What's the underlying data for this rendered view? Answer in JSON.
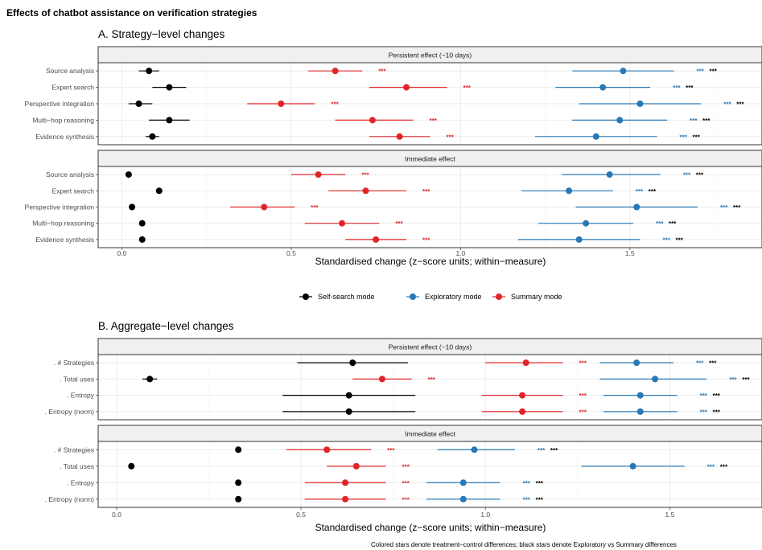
{
  "title": "Effects of chatbot assistance on verification strategies",
  "footnote": "Colored stars denote treatment–control differences; black stars denote Exploratory vs Summary differences",
  "colors": {
    "self": "#000000",
    "exploratory": "#2878b5",
    "summary": "#e02528",
    "strip": "#f0f0f0",
    "grid": "#ebebeb",
    "border": "#333333",
    "tick": "#4d4d4d"
  },
  "legend": {
    "position": "bottom",
    "items": [
      {
        "key": "self",
        "label": "Self-search mode"
      },
      {
        "key": "exploratory",
        "label": "Exploratory mode"
      },
      {
        "key": "summary",
        "label": "Summary mode"
      }
    ]
  },
  "chart_data": [
    {
      "type": "scatter",
      "title": "A. Strategy−level changes",
      "xlabel": "Standardised change (z−score units; within−measure)",
      "xticks": [
        0.0,
        0.5,
        1.0,
        1.5
      ],
      "xtick_labels": [
        "0.0",
        "0.5",
        "1.0",
        "1.5"
      ],
      "xlim": [
        -0.07,
        1.89
      ],
      "grid": true,
      "categories": [
        "Source analysis",
        "Expert search",
        "Perspective integration",
        "Multi−hop reasoning",
        "Evidence synthesis"
      ],
      "facets": [
        {
          "label": "Persistent effect (~10 days)",
          "series": [
            {
              "key": "self",
              "name": "Self-search mode",
              "estimate": [
                0.08,
                0.14,
                0.05,
                0.14,
                0.09
              ],
              "low": [
                0.05,
                0.09,
                0.02,
                0.08,
                0.07
              ],
              "high": [
                0.11,
                0.19,
                0.09,
                0.2,
                0.11
              ],
              "stars": [
                "",
                "",
                "",
                "",
                ""
              ]
            },
            {
              "key": "summary",
              "name": "Summary mode",
              "estimate": [
                0.63,
                0.84,
                0.47,
                0.74,
                0.82
              ],
              "low": [
                0.55,
                0.73,
                0.37,
                0.63,
                0.73
              ],
              "high": [
                0.71,
                0.96,
                0.57,
                0.86,
                0.91
              ],
              "stars": [
                "***",
                "***",
                "***",
                "***",
                "***"
              ]
            },
            {
              "key": "exploratory",
              "name": "Exploratory mode",
              "estimate": [
                1.48,
                1.42,
                1.53,
                1.47,
                1.4
              ],
              "low": [
                1.33,
                1.28,
                1.35,
                1.33,
                1.22
              ],
              "high": [
                1.63,
                1.56,
                1.71,
                1.61,
                1.58
              ],
              "stars": [
                "***",
                "***",
                "***",
                "***",
                "***"
              ],
              "diff_stars": [
                "***",
                "***",
                "***",
                "***",
                "***"
              ]
            }
          ]
        },
        {
          "label": "Immediate effect",
          "series": [
            {
              "key": "self",
              "name": "Self-search mode",
              "estimate": [
                0.02,
                0.11,
                0.03,
                0.06,
                0.06
              ],
              "low": [
                0.02,
                0.11,
                0.03,
                0.06,
                0.06
              ],
              "high": [
                0.02,
                0.11,
                0.03,
                0.06,
                0.06
              ],
              "stars": [
                "",
                "",
                "",
                "",
                ""
              ]
            },
            {
              "key": "summary",
              "name": "Summary mode",
              "estimate": [
                0.58,
                0.72,
                0.42,
                0.65,
                0.75
              ],
              "low": [
                0.5,
                0.61,
                0.32,
                0.54,
                0.66
              ],
              "high": [
                0.66,
                0.84,
                0.51,
                0.76,
                0.84
              ],
              "stars": [
                "***",
                "***",
                "***",
                "***",
                "***"
              ]
            },
            {
              "key": "exploratory",
              "name": "Exploratory mode",
              "estimate": [
                1.44,
                1.32,
                1.52,
                1.37,
                1.35
              ],
              "low": [
                1.3,
                1.18,
                1.34,
                1.23,
                1.17
              ],
              "high": [
                1.59,
                1.45,
                1.7,
                1.51,
                1.53
              ],
              "stars": [
                "***",
                "***",
                "***",
                "***",
                "***"
              ],
              "diff_stars": [
                "***",
                "***",
                "***",
                "***",
                "***"
              ]
            }
          ]
        }
      ]
    },
    {
      "type": "scatter",
      "title": "B. Aggregate−level changes",
      "xlabel": "Standardised change (z−score units; within−measure)",
      "xticks": [
        0.0,
        0.5,
        1.0,
        1.5
      ],
      "xtick_labels": [
        "0.0",
        "0.5",
        "1.0",
        "1.5"
      ],
      "xlim": [
        -0.05,
        1.75
      ],
      "grid": true,
      "categories": [
        ". # Strategies",
        ". Total uses",
        ". Entropy",
        ". Entropy (norm)"
      ],
      "facets": [
        {
          "label": "Persistent effect (~10 days)",
          "series": [
            {
              "key": "self",
              "name": "Self-search mode",
              "estimate": [
                0.64,
                0.09,
                0.63,
                0.63
              ],
              "low": [
                0.49,
                0.07,
                0.45,
                0.45
              ],
              "high": [
                0.79,
                0.11,
                0.81,
                0.81
              ],
              "stars": [
                "",
                "",
                "",
                ""
              ]
            },
            {
              "key": "summary",
              "name": "Summary mode",
              "estimate": [
                1.11,
                0.72,
                1.1,
                1.1
              ],
              "low": [
                1.0,
                0.64,
                0.99,
                0.99
              ],
              "high": [
                1.21,
                0.8,
                1.21,
                1.21
              ],
              "stars": [
                "***",
                "***",
                "***",
                "***"
              ]
            },
            {
              "key": "exploratory",
              "name": "Exploratory mode",
              "estimate": [
                1.41,
                1.46,
                1.42,
                1.42
              ],
              "low": [
                1.31,
                1.31,
                1.32,
                1.32
              ],
              "high": [
                1.51,
                1.6,
                1.52,
                1.52
              ],
              "stars": [
                "***",
                "***",
                "***",
                "***"
              ],
              "diff_stars": [
                "***",
                "***",
                "***",
                "***"
              ]
            }
          ]
        },
        {
          "label": "Immediate effect",
          "series": [
            {
              "key": "self",
              "name": "Self-search mode",
              "estimate": [
                0.33,
                0.04,
                0.33,
                0.33
              ],
              "low": [
                0.33,
                0.04,
                0.33,
                0.33
              ],
              "high": [
                0.33,
                0.04,
                0.33,
                0.33
              ],
              "stars": [
                "",
                "",
                "",
                ""
              ]
            },
            {
              "key": "summary",
              "name": "Summary mode",
              "estimate": [
                0.57,
                0.65,
                0.62,
                0.62
              ],
              "low": [
                0.46,
                0.57,
                0.51,
                0.51
              ],
              "high": [
                0.69,
                0.73,
                0.73,
                0.73
              ],
              "stars": [
                "***",
                "***",
                "***",
                "***"
              ]
            },
            {
              "key": "exploratory",
              "name": "Exploratory mode",
              "estimate": [
                0.97,
                1.4,
                0.94,
                0.94
              ],
              "low": [
                0.87,
                1.26,
                0.84,
                0.84
              ],
              "high": [
                1.08,
                1.54,
                1.04,
                1.04
              ],
              "stars": [
                "***",
                "***",
                "***",
                "***"
              ],
              "diff_stars": [
                "***",
                "***",
                "***",
                "***"
              ]
            }
          ]
        }
      ]
    }
  ]
}
